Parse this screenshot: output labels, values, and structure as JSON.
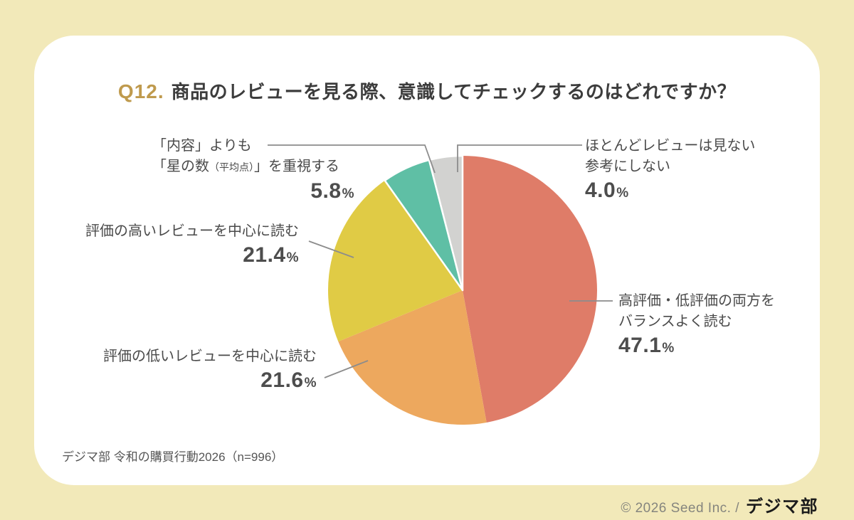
{
  "page": {
    "background_color": "#F2E9B9",
    "card_color": "#FFFFFF"
  },
  "title": {
    "prefix": "Q12.",
    "prefix_color": "#BF9A4D",
    "text": "商品のレビューを見る際、意識してチェックするのはどれですか？"
  },
  "units": {
    "percent": "%"
  },
  "chart_data": {
    "type": "pie",
    "title": "Q12. 商品のレビューを見る際、意識してチェックするのはどれですか？",
    "start_angle": "12時の位置",
    "direction": "clockwise",
    "sample_size": "n=996",
    "slices": [
      {
        "label": "高評価・低評価の両方をバランスよく読む",
        "value": 47.1,
        "color": "#DF7C68"
      },
      {
        "label": "評価の低いレビューを中心に読む",
        "value": 21.6,
        "color": "#EDA85E"
      },
      {
        "label": "評価の高いレビューを中心に読む",
        "value": 21.4,
        "color": "#E0CB45"
      },
      {
        "label": "「内容」よりも「星の数（平均点）」を重視する",
        "value": 5.8,
        "color": "#5FBFA5"
      },
      {
        "label": "ほとんどレビューは見ない参考にしない",
        "value": 4.0,
        "color": "#D2D2D0"
      }
    ]
  },
  "callouts": {
    "balanced": {
      "line1": "高評価・低評価の両方を",
      "line2": "バランスよく読む",
      "pct": "47.1"
    },
    "low": {
      "line1": "評価の低いレビューを中心に読む",
      "pct": "21.6"
    },
    "high": {
      "line1": "評価の高いレビューを中心に読む",
      "pct": "21.4"
    },
    "stars": {
      "line1": "「内容」よりも",
      "line2_pre": "「星の数",
      "line2_small": "（平均点）",
      "line2_post": "」を重視する",
      "pct": "5.8"
    },
    "none": {
      "line1": "ほとんどレビューは見ない",
      "line2": "参考にしない",
      "pct": "4.0"
    }
  },
  "source": "デジマ部 令和の購買行動2026（n=996）",
  "footer": {
    "copyright": "© 2026 Seed Inc. /",
    "logo": "デジマ部"
  }
}
